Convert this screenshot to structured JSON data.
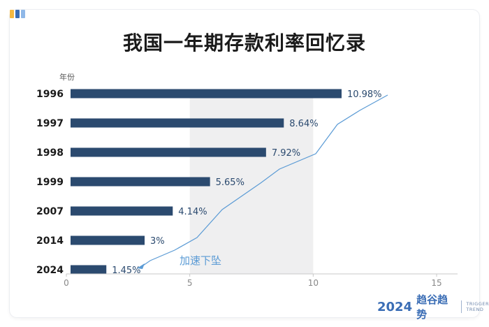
{
  "title": "我国一年期存款利率回忆录",
  "chart_data": {
    "type": "bar",
    "orientation": "horizontal",
    "title": "我国一年期存款利率回忆录",
    "ylabel": "年份",
    "xlabel": "",
    "categories": [
      "1996",
      "1997",
      "1998",
      "1999",
      "2007",
      "2014",
      "2024"
    ],
    "values": [
      10.98,
      8.64,
      7.92,
      5.65,
      4.14,
      3,
      1.45
    ],
    "value_labels": [
      "10.98%",
      "8.64%",
      "7.92%",
      "5.65%",
      "4.14%",
      "3%",
      "1.45%"
    ],
    "xlim": [
      0,
      15
    ],
    "xticks": [
      "0",
      "5",
      "10",
      "15"
    ],
    "shaded_band": [
      5,
      10
    ],
    "annotation": "加速下坠",
    "grid": false,
    "bar_color": "#2b4a6f",
    "trend_color": "#5b9bd5",
    "band_color": "#efeff0"
  },
  "brand": {
    "year": "2024",
    "name": "趋谷趋势",
    "en_line1": "TRIGGER",
    "en_line2": "TREND",
    "color": "#3a6db5"
  },
  "accent_colors": [
    "#f5b942",
    "#3a6db5",
    "#8fb8e8"
  ]
}
